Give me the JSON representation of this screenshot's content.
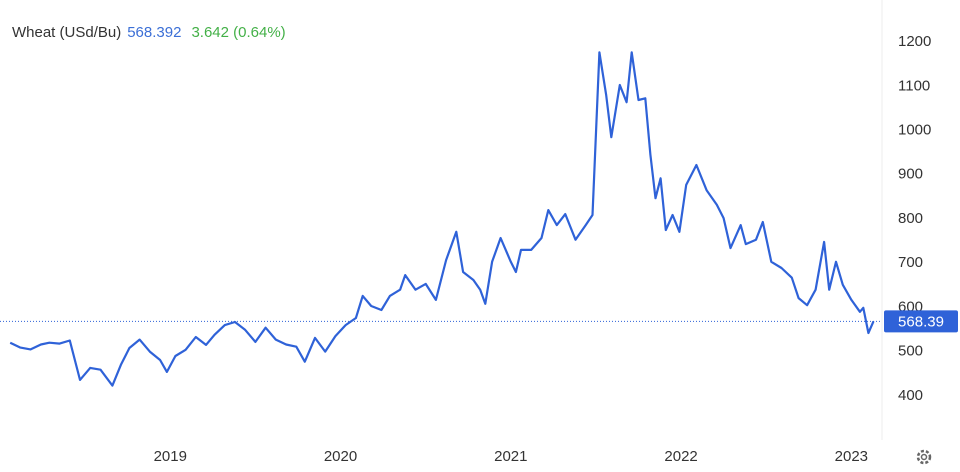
{
  "chart_data": {
    "type": "line",
    "title": "Wheat (USd/Bu)",
    "price": "568.392",
    "change": "3.642 (0.64%)",
    "last_label": "568.39",
    "x": [
      2018.06,
      2018.12,
      2018.18,
      2018.24,
      2018.29,
      2018.35,
      2018.41,
      2018.47,
      2018.53,
      2018.59,
      2018.66,
      2018.71,
      2018.76,
      2018.82,
      2018.88,
      2018.94,
      2018.98,
      2019.03,
      2019.09,
      2019.15,
      2019.21,
      2019.26,
      2019.32,
      2019.38,
      2019.44,
      2019.5,
      2019.56,
      2019.62,
      2019.68,
      2019.74,
      2019.79,
      2019.85,
      2019.91,
      2019.97,
      2020.03,
      2020.09,
      2020.13,
      2020.18,
      2020.24,
      2020.29,
      2020.35,
      2020.38,
      2020.44,
      2020.5,
      2020.56,
      2020.62,
      2020.68,
      2020.72,
      2020.78,
      2020.82,
      2020.85,
      2020.89,
      2020.94,
      2021.0,
      2021.03,
      2021.06,
      2021.12,
      2021.18,
      2021.22,
      2021.27,
      2021.32,
      2021.38,
      2021.44,
      2021.48,
      2021.52,
      2021.56,
      2021.59,
      2021.64,
      2021.68,
      2021.71,
      2021.75,
      2021.79,
      2021.82,
      2021.85,
      2021.88,
      2021.91,
      2021.95,
      2021.99,
      2022.03,
      2022.09,
      2022.15,
      2022.21,
      2022.25,
      2022.29,
      2022.35,
      2022.38,
      2022.44,
      2022.48,
      2022.53,
      2022.59,
      2022.65,
      2022.69,
      2022.74,
      2022.79,
      2022.84,
      2022.87,
      2022.91,
      2022.95,
      2023.0,
      2023.05,
      2023.07,
      2023.1,
      2023.13
    ],
    "series": [
      {
        "name": "Wheat (USd/Bu)",
        "color": "#2f62d8",
        "values": [
          520,
          509,
          505,
          516,
          520,
          518,
          525,
          436,
          463,
          459,
          423,
          470,
          508,
          527,
          500,
          481,
          454,
          490,
          504,
          533,
          515,
          538,
          560,
          567,
          549,
          522,
          554,
          527,
          516,
          511,
          477,
          531,
          500,
          535,
          560,
          576,
          626,
          603,
          594,
          626,
          640,
          673,
          640,
          653,
          617,
          707,
          771,
          680,
          662,
          640,
          608,
          703,
          757,
          703,
          680,
          730,
          730,
          757,
          820,
          786,
          811,
          753,
          786,
          809,
          1177,
          1080,
          985,
          1103,
          1064,
          1177,
          1069,
          1073,
          945,
          847,
          892,
          775,
          809,
          771,
          877,
          922,
          865,
          832,
          802,
          734,
          786,
          743,
          753,
          793,
          703,
          689,
          667,
          621,
          605,
          640,
          748,
          640,
          703,
          651,
          617,
          590,
          599,
          542,
          568.392
        ]
      }
    ],
    "xlim": [
      2018.0,
      2023.18
    ],
    "xticks": [
      2019,
      2020,
      2021,
      2022,
      2023
    ],
    "ylim": [
      300,
      1250
    ],
    "yticks": [
      400,
      500,
      600,
      700,
      800,
      900,
      1000,
      1100,
      1200
    ],
    "grid": false
  }
}
